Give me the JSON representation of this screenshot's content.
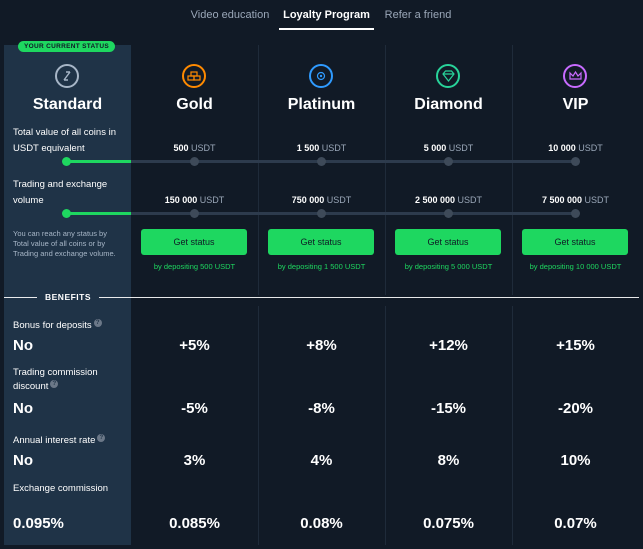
{
  "tabs": [
    {
      "label": "Video education",
      "active": false
    },
    {
      "label": "Loyalty Program",
      "active": true
    },
    {
      "label": "Refer a friend",
      "active": false
    }
  ],
  "current_status_badge": "YOUR CURRENT STATUS",
  "tiers": [
    {
      "name": "Standard",
      "icon": "lightning-icon",
      "color": "#a7b6c7"
    },
    {
      "name": "Gold",
      "icon": "gold-bars-icon",
      "color": "#ff8a00"
    },
    {
      "name": "Platinum",
      "icon": "gear-icon",
      "color": "#2f9bff"
    },
    {
      "name": "Diamond",
      "icon": "diamond-icon",
      "color": "#28d39a"
    },
    {
      "name": "VIP",
      "icon": "crown-icon",
      "color": "#c86bff"
    }
  ],
  "row_labels": {
    "total_value": "Total value of all coins in USDT equivalent",
    "trading_volume": "Trading and exchange volume",
    "reach_note": "You can reach any status by Total value of all coins or by Trading and exchange volume."
  },
  "requirements": {
    "total_value": [
      {
        "amount": "500",
        "unit": "USDT"
      },
      {
        "amount": "1 500",
        "unit": "USDT"
      },
      {
        "amount": "5 000",
        "unit": "USDT"
      },
      {
        "amount": "10 000",
        "unit": "USDT"
      }
    ],
    "trading_volume": [
      {
        "amount": "150 000",
        "unit": "USDT"
      },
      {
        "amount": "750 000",
        "unit": "USDT"
      },
      {
        "amount": "2 500 000",
        "unit": "USDT"
      },
      {
        "amount": "7 500 000",
        "unit": "USDT"
      }
    ]
  },
  "buttons": {
    "get_status_label": "Get status",
    "deposit_notes": [
      "by depositing 500 USDT",
      "by depositing 1 500 USDT",
      "by depositing 5 000 USDT",
      "by depositing 10 000 USDT"
    ]
  },
  "benefits_title": "BENEFITS",
  "benefits": [
    {
      "label": "Bonus for deposits",
      "help": "?",
      "values": [
        "No",
        "+5%",
        "+8%",
        "+12%",
        "+15%"
      ]
    },
    {
      "label_line1": "Trading commission",
      "label_line2": "discount",
      "help": "?",
      "values": [
        "No",
        "-5%",
        "-8%",
        "-15%",
        "-20%"
      ]
    },
    {
      "label": "Annual interest rate",
      "help": "?",
      "values": [
        "No",
        "3%",
        "4%",
        "8%",
        "10%"
      ]
    },
    {
      "label": "Exchange commission",
      "values": [
        "0.095%",
        "0.085%",
        "0.08%",
        "0.075%",
        "0.07%"
      ]
    }
  ],
  "colors": {
    "accent": "#1ed760",
    "background": "#111a26",
    "current_panel": "#1f3347"
  }
}
